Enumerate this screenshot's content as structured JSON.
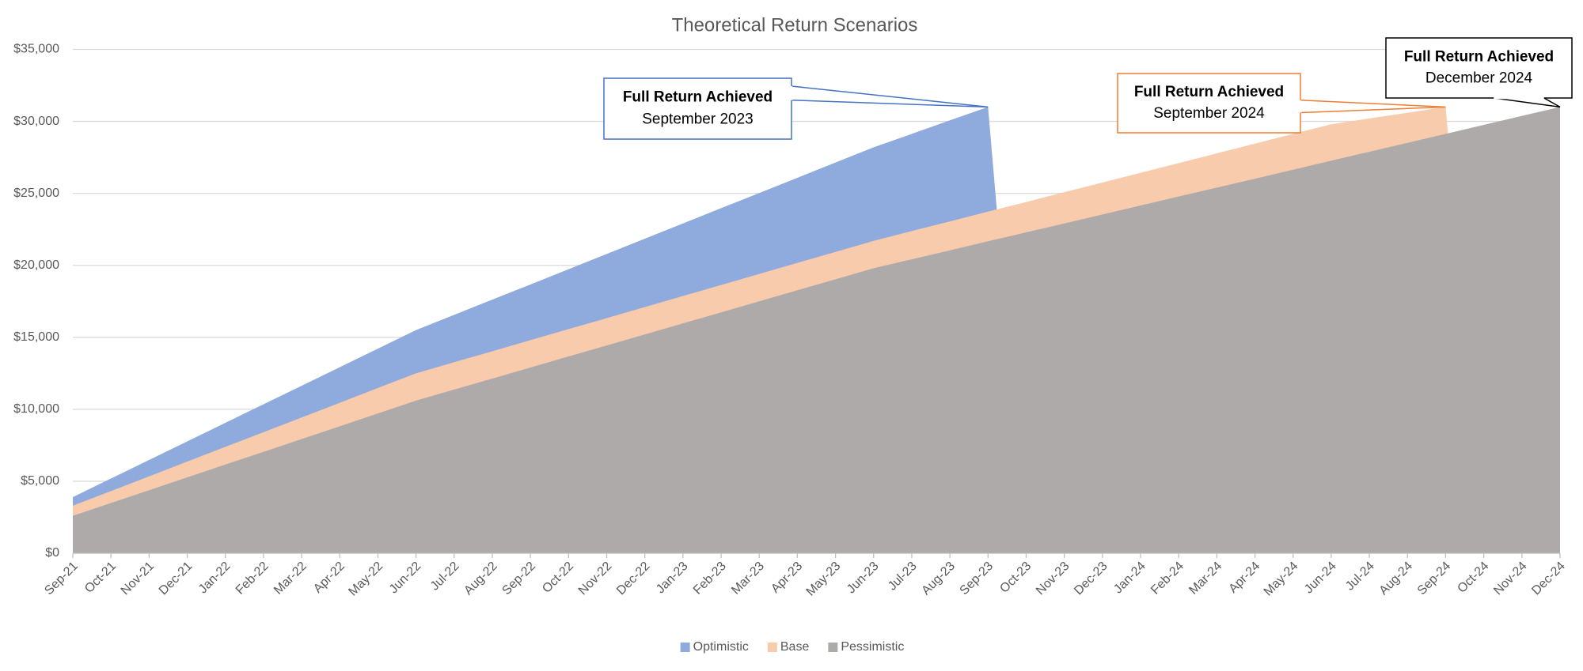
{
  "chart_data": {
    "type": "area",
    "title": "Theoretical Return Scenarios",
    "categories": [
      "Sep-21",
      "Oct-21",
      "Nov-21",
      "Dec-21",
      "Jan-22",
      "Feb-22",
      "Mar-22",
      "Apr-22",
      "May-22",
      "Jun-22",
      "Jul-22",
      "Aug-22",
      "Sep-22",
      "Oct-22",
      "Nov-22",
      "Dec-22",
      "Jan-23",
      "Feb-23",
      "Mar-23",
      "Apr-23",
      "May-23",
      "Jun-23",
      "Jul-23",
      "Aug-23",
      "Sep-23",
      "Oct-23",
      "Nov-23",
      "Dec-23",
      "Jan-24",
      "Feb-24",
      "Mar-24",
      "Apr-24",
      "May-24",
      "Jun-24",
      "Jul-24",
      "Aug-24",
      "Sep-24",
      "Oct-24",
      "Nov-24",
      "Dec-24"
    ],
    "series": [
      {
        "name": "Optimistic",
        "color": "#8faadc",
        "values": [
          3900,
          5190,
          6480,
          7770,
          9060,
          10350,
          11630,
          12920,
          14210,
          15500,
          16560,
          17620,
          18670,
          19730,
          20790,
          21850,
          22910,
          23970,
          25020,
          26080,
          27140,
          28200,
          29130,
          30070,
          31000,
          0,
          0,
          0,
          0,
          0,
          0,
          0,
          0,
          0,
          0,
          0,
          0,
          0,
          0,
          0
        ]
      },
      {
        "name": "Base",
        "color": "#f8cbad",
        "values": [
          3300,
          4320,
          5340,
          6370,
          7390,
          8410,
          9430,
          10450,
          11480,
          12500,
          13270,
          14030,
          14800,
          15570,
          16330,
          17100,
          17870,
          18630,
          19400,
          20170,
          20930,
          21700,
          22380,
          23050,
          23730,
          24400,
          25080,
          25750,
          26430,
          27100,
          27780,
          28450,
          29130,
          29800,
          30200,
          30600,
          31000,
          0,
          0,
          0
        ]
      },
      {
        "name": "Pessimistic",
        "color": "#aeaaaa",
        "values": [
          2600,
          3490,
          4380,
          5270,
          6160,
          7040,
          7930,
          8820,
          9710,
          10600,
          11370,
          12130,
          12900,
          13670,
          14430,
          15200,
          15970,
          16730,
          17500,
          18270,
          19030,
          19800,
          20420,
          21040,
          21670,
          22290,
          22910,
          23530,
          24160,
          24780,
          25400,
          26020,
          26640,
          27270,
          27890,
          28510,
          29130,
          29760,
          30380,
          31000
        ]
      }
    ],
    "ylim": [
      0,
      35000
    ],
    "yticks": [
      {
        "value": 0,
        "label": "$0"
      },
      {
        "value": 5000,
        "label": "$5,000"
      },
      {
        "value": 10000,
        "label": "$10,000"
      },
      {
        "value": 15000,
        "label": "$15,000"
      },
      {
        "value": 20000,
        "label": "$20,000"
      },
      {
        "value": 25000,
        "label": "$25,000"
      },
      {
        "value": 30000,
        "label": "$30,000"
      },
      {
        "value": 35000,
        "label": "$35,000"
      }
    ],
    "grid": true,
    "legend": "bottom",
    "annotations": [
      {
        "title": "Full Return Achieved",
        "text": "September 2023",
        "color": "#4472c4"
      },
      {
        "title": "Full Return Achieved",
        "text": "September 2024",
        "color": "#ed7d31"
      },
      {
        "title": "Full Return Achieved",
        "text": "December 2024",
        "color": "#000000"
      }
    ]
  }
}
